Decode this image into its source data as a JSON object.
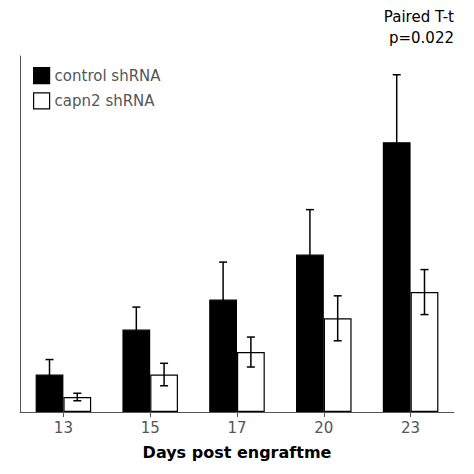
{
  "chart_data": {
    "type": "bar",
    "xlabel": "Days post engraftme",
    "categories": [
      "13",
      "15",
      "17",
      "20",
      "23"
    ],
    "series": [
      {
        "name": "control shRNA",
        "color": "#000000",
        "values": [
          0.1,
          0.22,
          0.3,
          0.42,
          0.72
        ],
        "errors": [
          0.04,
          0.06,
          0.1,
          0.12,
          0.18
        ]
      },
      {
        "name": "capn2 shRNA",
        "color": "#ffffff",
        "values": [
          0.04,
          0.1,
          0.16,
          0.25,
          0.32
        ],
        "errors": [
          0.01,
          0.03,
          0.04,
          0.06,
          0.06
        ]
      }
    ],
    "ylim": [
      0,
      0.95
    ],
    "annotations": [
      "Paired T-t",
      "p=0.022"
    ],
    "legend": "upper left",
    "grid": false,
    "tick_labels": "x"
  }
}
